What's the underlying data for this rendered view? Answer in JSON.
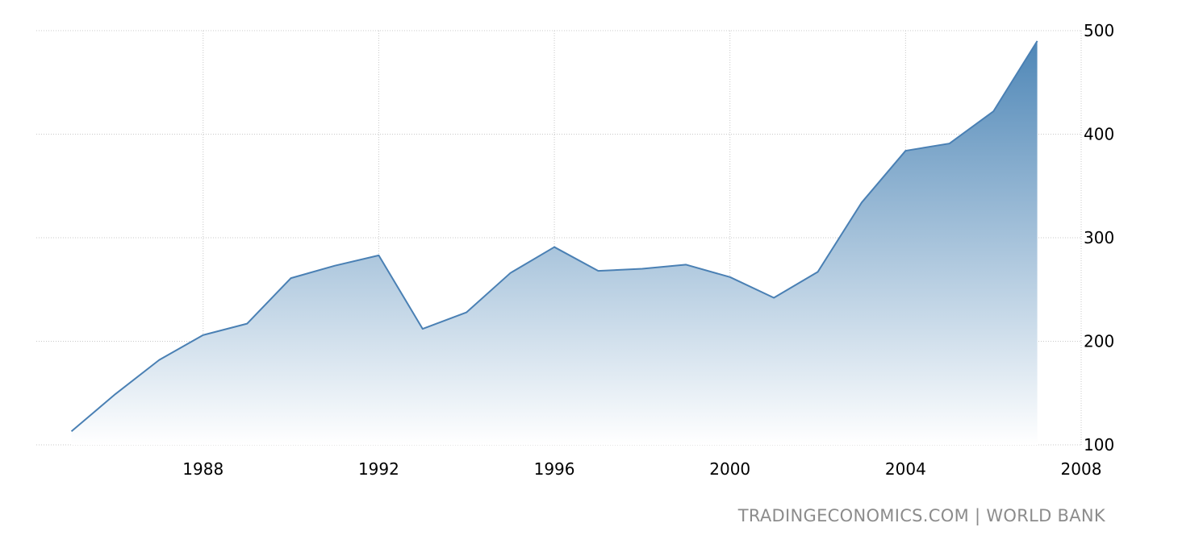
{
  "chart_data": {
    "type": "area",
    "title": "",
    "xlabel": "",
    "ylabel": "",
    "x": [
      1985,
      1986,
      1987,
      1988,
      1989,
      1990,
      1991,
      1992,
      1993,
      1994,
      1995,
      1996,
      1997,
      1998,
      1999,
      2000,
      2001,
      2002,
      2003,
      2004,
      2005,
      2006,
      2007
    ],
    "values": [
      113,
      149,
      182,
      206,
      217,
      261,
      273,
      283,
      212,
      228,
      266,
      291,
      268,
      270,
      274,
      262,
      242,
      267,
      334,
      384,
      391,
      422,
      490
    ],
    "xlim": [
      1984.2,
      2008
    ],
    "ylim": [
      100,
      500
    ],
    "x_ticks": [
      "1988",
      "1992",
      "1996",
      "2000",
      "2004",
      "2008"
    ],
    "y_ticks": [
      "100",
      "200",
      "300",
      "400",
      "500"
    ],
    "grid": true,
    "colors": {
      "line": "#4a80b4",
      "fill_top": "#4f87b7",
      "fill_bottom": "#ffffff"
    }
  },
  "source_text": "TRADINGECONOMICS.COM  |  WORLD BANK"
}
